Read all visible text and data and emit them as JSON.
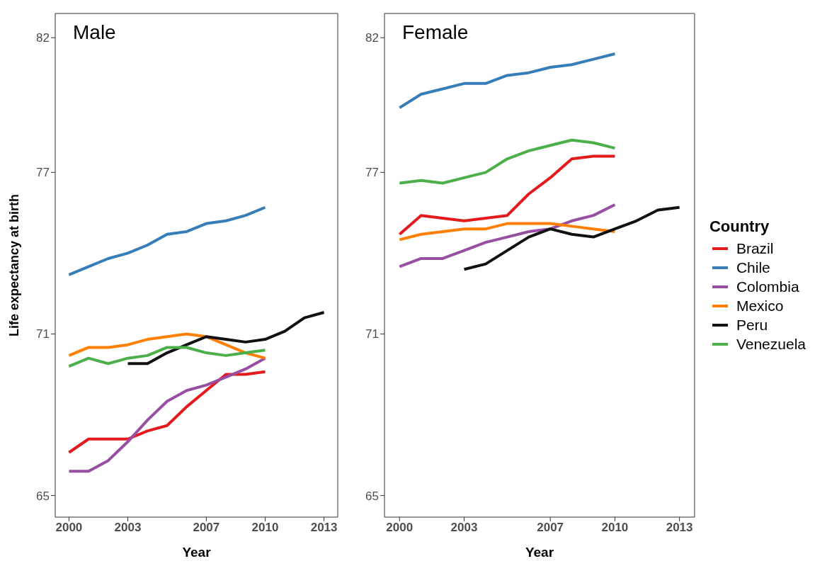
{
  "chart_data": [
    {
      "type": "line",
      "title": "Male",
      "xlabel": "Year",
      "ylabel": "Life expectancy at birth",
      "xlim": [
        1999.3,
        2013.7
      ],
      "xticks": [
        2000,
        2003,
        2007,
        2010,
        2013
      ],
      "ylim": [
        64.2,
        82.9
      ],
      "yticks": [
        65,
        71,
        77,
        82
      ],
      "grid": false,
      "legend": false,
      "series": [
        {
          "color": "#e41a1c",
          "x": [
            2000,
            2001,
            2002,
            2003,
            2004,
            2005,
            2006,
            2007,
            2008,
            2009,
            2010
          ],
          "values": [
            66.6,
            67.1,
            67.1,
            67.1,
            67.4,
            67.6,
            68.3,
            68.9,
            69.5,
            69.5,
            69.6
          ]
        },
        {
          "color": "#377eb8",
          "x": [
            2000,
            2001,
            2002,
            2003,
            2004,
            2005,
            2006,
            2007,
            2008,
            2009,
            2010
          ],
          "values": [
            73.2,
            73.5,
            73.8,
            74.0,
            74.3,
            74.7,
            74.8,
            75.1,
            75.2,
            75.4,
            75.7
          ]
        },
        {
          "color": "#984ea3",
          "x": [
            2000,
            2001,
            2002,
            2003,
            2004,
            2005,
            2006,
            2007,
            2008,
            2009,
            2010
          ],
          "values": [
            65.9,
            65.9,
            66.3,
            67.0,
            67.8,
            68.5,
            68.9,
            69.1,
            69.4,
            69.7,
            70.1
          ]
        },
        {
          "color": "#ff7f00",
          "x": [
            2000,
            2001,
            2002,
            2003,
            2004,
            2005,
            2006,
            2007,
            2008,
            2009,
            2010
          ],
          "values": [
            70.2,
            70.5,
            70.5,
            70.6,
            70.8,
            70.9,
            71.0,
            70.9,
            70.6,
            70.3,
            70.1
          ]
        },
        {
          "color": "#111111",
          "x": [
            2003,
            2004,
            2005,
            2006,
            2007,
            2008,
            2009,
            2010,
            2011,
            2012,
            2013
          ],
          "values": [
            69.9,
            69.9,
            70.3,
            70.6,
            70.9,
            70.8,
            70.7,
            70.8,
            71.1,
            71.6,
            71.8
          ]
        },
        {
          "color": "#4daf4a",
          "x": [
            2000,
            2001,
            2002,
            2003,
            2004,
            2005,
            2006,
            2007,
            2008,
            2009,
            2010
          ],
          "values": [
            69.8,
            70.1,
            69.9,
            70.1,
            70.2,
            70.5,
            70.5,
            70.3,
            70.2,
            70.3,
            70.4
          ]
        }
      ]
    },
    {
      "type": "line",
      "title": "Female",
      "xlabel": "Year",
      "legend_title": "Country",
      "xlim": [
        1999.3,
        2013.7
      ],
      "xticks": [
        2000,
        2003,
        2007,
        2010,
        2013
      ],
      "ylim": [
        64.2,
        82.9
      ],
      "yticks": [
        65,
        71,
        77,
        82
      ],
      "grid": false,
      "legend": "right",
      "series": [
        {
          "name": "Brazil",
          "color": "#e41a1c",
          "x": [
            2000,
            2001,
            2002,
            2003,
            2004,
            2005,
            2006,
            2007,
            2008,
            2009,
            2010
          ],
          "values": [
            74.7,
            75.4,
            75.3,
            75.2,
            75.3,
            75.4,
            76.2,
            76.8,
            77.5,
            77.6,
            77.6
          ]
        },
        {
          "name": "Chile",
          "color": "#377eb8",
          "x": [
            2000,
            2001,
            2002,
            2003,
            2004,
            2005,
            2006,
            2007,
            2008,
            2009,
            2010
          ],
          "values": [
            79.4,
            79.9,
            80.1,
            80.3,
            80.3,
            80.6,
            80.7,
            80.9,
            81.0,
            81.2,
            81.4
          ]
        },
        {
          "name": "Colombia",
          "color": "#984ea3",
          "x": [
            2000,
            2001,
            2002,
            2003,
            2004,
            2005,
            2006,
            2007,
            2008,
            2009,
            2010
          ],
          "values": [
            73.5,
            73.8,
            73.8,
            74.1,
            74.4,
            74.6,
            74.8,
            74.9,
            75.2,
            75.4,
            75.8
          ]
        },
        {
          "name": "Mexico",
          "color": "#ff7f00",
          "x": [
            2000,
            2001,
            2002,
            2003,
            2004,
            2005,
            2006,
            2007,
            2008,
            2009,
            2010
          ],
          "values": [
            74.5,
            74.7,
            74.8,
            74.9,
            74.9,
            75.1,
            75.1,
            75.1,
            75.0,
            74.9,
            74.8
          ]
        },
        {
          "name": "Peru",
          "color": "#111111",
          "x": [
            2003,
            2004,
            2005,
            2006,
            2007,
            2008,
            2009,
            2010,
            2011,
            2012,
            2013
          ],
          "values": [
            73.4,
            73.6,
            74.1,
            74.6,
            74.9,
            74.7,
            74.6,
            74.9,
            75.2,
            75.6,
            75.7
          ]
        },
        {
          "name": "Venezuela",
          "color": "#4daf4a",
          "x": [
            2000,
            2001,
            2002,
            2003,
            2004,
            2005,
            2006,
            2007,
            2008,
            2009,
            2010
          ],
          "values": [
            76.6,
            76.7,
            76.6,
            76.8,
            77.0,
            77.5,
            77.8,
            78.0,
            78.2,
            78.1,
            77.9
          ]
        }
      ]
    }
  ]
}
